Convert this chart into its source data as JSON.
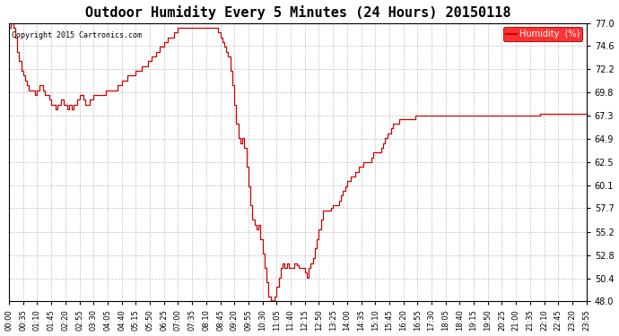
{
  "title": "Outdoor Humidity Every 5 Minutes (24 Hours) 20150118",
  "copyright": "Copyright 2015 Cartronics.com",
  "legend_label": "Humidity  (%)",
  "line_color": "#cc0000",
  "background_color": "#ffffff",
  "grid_color": "#999999",
  "ylim": [
    48.0,
    77.0
  ],
  "yticks": [
    48.0,
    50.4,
    52.8,
    55.2,
    57.7,
    60.1,
    62.5,
    64.9,
    67.3,
    69.8,
    72.2,
    74.6,
    77.0
  ],
  "humidity_data": [
    76.5,
    77.0,
    76.5,
    75.5,
    74.0,
    73.0,
    72.0,
    71.5,
    71.0,
    70.5,
    70.0,
    70.0,
    70.0,
    69.5,
    70.0,
    70.5,
    70.5,
    70.0,
    69.5,
    69.5,
    69.0,
    68.5,
    68.5,
    68.0,
    68.5,
    68.5,
    69.0,
    68.5,
    68.5,
    68.0,
    68.5,
    68.0,
    68.5,
    68.5,
    69.0,
    69.5,
    69.5,
    69.0,
    68.5,
    68.5,
    69.0,
    69.0,
    69.5,
    69.5,
    69.5,
    69.5,
    69.5,
    69.5,
    70.0,
    70.0,
    70.0,
    70.0,
    70.0,
    70.0,
    70.5,
    70.5,
    71.0,
    71.0,
    71.0,
    71.5,
    71.5,
    71.5,
    71.5,
    72.0,
    72.0,
    72.0,
    72.5,
    72.5,
    72.5,
    73.0,
    73.0,
    73.5,
    73.5,
    74.0,
    74.0,
    74.5,
    74.5,
    75.0,
    75.0,
    75.5,
    75.5,
    75.5,
    76.0,
    76.0,
    76.5,
    76.5,
    76.5,
    76.5,
    76.5,
    76.5,
    76.5,
    76.5,
    76.5,
    76.5,
    76.5,
    76.5,
    76.5,
    76.5,
    76.5,
    76.5,
    76.5,
    76.5,
    76.5,
    76.5,
    76.0,
    75.5,
    75.0,
    74.5,
    74.0,
    73.5,
    72.0,
    70.5,
    68.5,
    66.5,
    65.0,
    64.5,
    65.0,
    64.0,
    62.0,
    60.0,
    58.0,
    56.5,
    56.0,
    55.5,
    56.0,
    54.5,
    53.0,
    51.5,
    50.0,
    48.5,
    48.1,
    48.0,
    48.5,
    49.5,
    50.5,
    51.5,
    52.0,
    51.5,
    52.0,
    51.5,
    51.5,
    51.5,
    52.0,
    51.8,
    51.5,
    51.5,
    51.5,
    51.0,
    50.5,
    51.5,
    52.0,
    52.5,
    53.5,
    54.5,
    55.5,
    56.5,
    57.5,
    57.5,
    57.5,
    57.5,
    57.7,
    58.0,
    58.0,
    58.0,
    58.5,
    59.0,
    59.5,
    60.0,
    60.5,
    60.5,
    61.0,
    61.0,
    61.5,
    61.5,
    62.0,
    62.0,
    62.5,
    62.5,
    62.5,
    62.5,
    63.0,
    63.5,
    63.5,
    63.5,
    63.5,
    64.0,
    64.5,
    65.0,
    65.5,
    65.5,
    66.0,
    66.5,
    66.5,
    66.5,
    67.0,
    67.0,
    67.0,
    67.0,
    67.0,
    67.0,
    67.0,
    67.0,
    67.3,
    67.3,
    67.3,
    67.3,
    67.3,
    67.3,
    67.3,
    67.3,
    67.3,
    67.3,
    67.3,
    67.3,
    67.3,
    67.3,
    67.3,
    67.3,
    67.3,
    67.3,
    67.3,
    67.3,
    67.3,
    67.3,
    67.3,
    67.3,
    67.3,
    67.3,
    67.3,
    67.3,
    67.3,
    67.3,
    67.3,
    67.3,
    67.3,
    67.3,
    67.3,
    67.3,
    67.3,
    67.3,
    67.3,
    67.3,
    67.3,
    67.3,
    67.3,
    67.3,
    67.3,
    67.3,
    67.3,
    67.3,
    67.3,
    67.3,
    67.3,
    67.3,
    67.3,
    67.3,
    67.3,
    67.3,
    67.3,
    67.3,
    67.3,
    67.3,
    67.3,
    67.3,
    67.5,
    67.5,
    67.5,
    67.5,
    67.5,
    67.5,
    67.5,
    67.5,
    67.5,
    67.5,
    67.5,
    67.5,
    67.5,
    67.5,
    67.5,
    67.5,
    67.5,
    67.5,
    67.5,
    67.5,
    67.5,
    67.5,
    67.5,
    67.5
  ],
  "time_labels": [
    "00:00",
    "00:35",
    "01:10",
    "01:45",
    "02:20",
    "02:55",
    "03:30",
    "04:05",
    "04:40",
    "05:15",
    "05:50",
    "06:25",
    "07:00",
    "07:35",
    "08:10",
    "08:45",
    "09:20",
    "09:55",
    "10:30",
    "11:05",
    "11:40",
    "12:15",
    "12:50",
    "13:25",
    "14:00",
    "14:35",
    "15:10",
    "15:45",
    "16:20",
    "16:55",
    "17:30",
    "18:05",
    "18:40",
    "19:15",
    "19:50",
    "20:25",
    "21:00",
    "21:35",
    "22:10",
    "22:45",
    "23:20",
    "23:55"
  ],
  "title_fontsize": 11,
  "copyright_fontsize": 6,
  "tick_fontsize": 7,
  "xtick_fontsize": 6
}
